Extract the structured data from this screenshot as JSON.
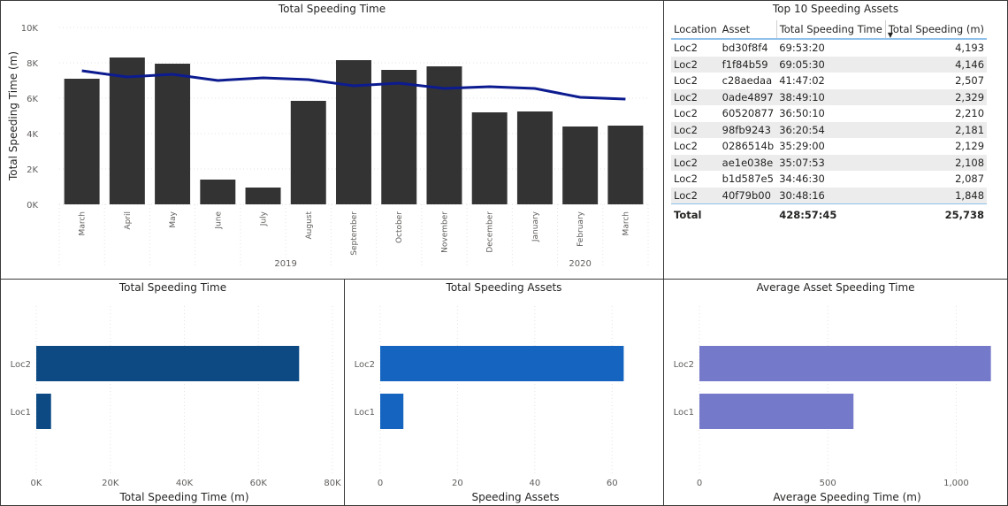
{
  "charts": {
    "top_chart": {
      "title": "Total Speeding Time",
      "ylabel": "Total Speeding Time (m)",
      "bar_color": "#333333",
      "line_color": "#0c1b8f"
    },
    "location_charts": [
      {
        "title": "Total Speeding Time",
        "xlabel": "Total Speeding Time (m)",
        "color": "#0d4a84"
      },
      {
        "title": "Total Speeding Assets",
        "xlabel": "Speeding Assets",
        "color": "#1565c0"
      },
      {
        "title": "Average Asset Speeding Time",
        "xlabel": "Average Speeding Time (m)",
        "color": "#7479c9"
      }
    ]
  },
  "table": {
    "title": "Top 10 Speeding Assets",
    "columns": [
      "Location",
      "Asset",
      "Total Speeding Time",
      "Total Speeding (m)"
    ],
    "rows": [
      [
        "Loc2",
        "bd30f8f4",
        "69:53:20",
        "4,193"
      ],
      [
        "Loc2",
        "f1f84b59",
        "69:05:30",
        "4,146"
      ],
      [
        "Loc2",
        "c28aedaa",
        "41:47:02",
        "2,507"
      ],
      [
        "Loc2",
        "0ade4897",
        "38:49:10",
        "2,329"
      ],
      [
        "Loc2",
        "60520877",
        "36:50:10",
        "2,210"
      ],
      [
        "Loc2",
        "98fb9243",
        "36:20:54",
        "2,181"
      ],
      [
        "Loc2",
        "0286514b",
        "35:29:00",
        "2,129"
      ],
      [
        "Loc2",
        "ae1e038e",
        "35:07:53",
        "2,108"
      ],
      [
        "Loc2",
        "b1d587e5",
        "34:46:30",
        "2,087"
      ],
      [
        "Loc2",
        "40f79b00",
        "30:48:16",
        "1,848"
      ]
    ],
    "total": [
      "Total",
      "",
      "428:57:45",
      "25,738"
    ]
  },
  "chart_data": [
    {
      "type": "bar",
      "title": "Total Speeding Time",
      "xlabel": "",
      "ylabel": "Total Speeding Time (m)",
      "categories": [
        "March",
        "April",
        "May",
        "June",
        "July",
        "August",
        "September",
        "October",
        "November",
        "December",
        "January",
        "February",
        "March"
      ],
      "year_groups": [
        {
          "label": "2019",
          "start": 0,
          "end": 9
        },
        {
          "label": "2020",
          "start": 10,
          "end": 12
        }
      ],
      "series": [
        {
          "type": "bar",
          "values": [
            7100,
            8300,
            7950,
            1400,
            950,
            5850,
            8150,
            7600,
            7800,
            5200,
            5250,
            4400,
            4450
          ]
        },
        {
          "type": "line",
          "values": [
            7550,
            7200,
            7350,
            7000,
            7150,
            7050,
            6700,
            6850,
            6550,
            6650,
            6550,
            6050,
            5950
          ]
        }
      ],
      "yticks": [
        "0K",
        "2K",
        "4K",
        "6K",
        "8K",
        "10K"
      ],
      "ylim": [
        0,
        10000
      ],
      "grid": true
    },
    {
      "type": "bar",
      "orientation": "horizontal",
      "title": "Total Speeding Time",
      "xlabel": "Total Speeding Time (m)",
      "categories": [
        "Loc2",
        "Loc1"
      ],
      "values": [
        71000,
        4000
      ],
      "xticks": [
        "0K",
        "20K",
        "40K",
        "60K",
        "80K"
      ],
      "xlim": [
        0,
        80000
      ]
    },
    {
      "type": "bar",
      "orientation": "horizontal",
      "title": "Total Speeding Assets",
      "xlabel": "Speeding Assets",
      "categories": [
        "Loc2",
        "Loc1"
      ],
      "values": [
        63,
        6
      ],
      "xticks": [
        "0",
        "20",
        "40",
        "60"
      ],
      "xlim": [
        0,
        70
      ]
    },
    {
      "type": "bar",
      "orientation": "horizontal",
      "title": "Average Asset Speeding Time",
      "xlabel": "Average Speeding Time (m)",
      "categories": [
        "Loc2",
        "Loc1"
      ],
      "values": [
        1135,
        600
      ],
      "xticks": [
        "0",
        "500",
        "1,000"
      ],
      "xlim": [
        0,
        1150
      ]
    }
  ]
}
